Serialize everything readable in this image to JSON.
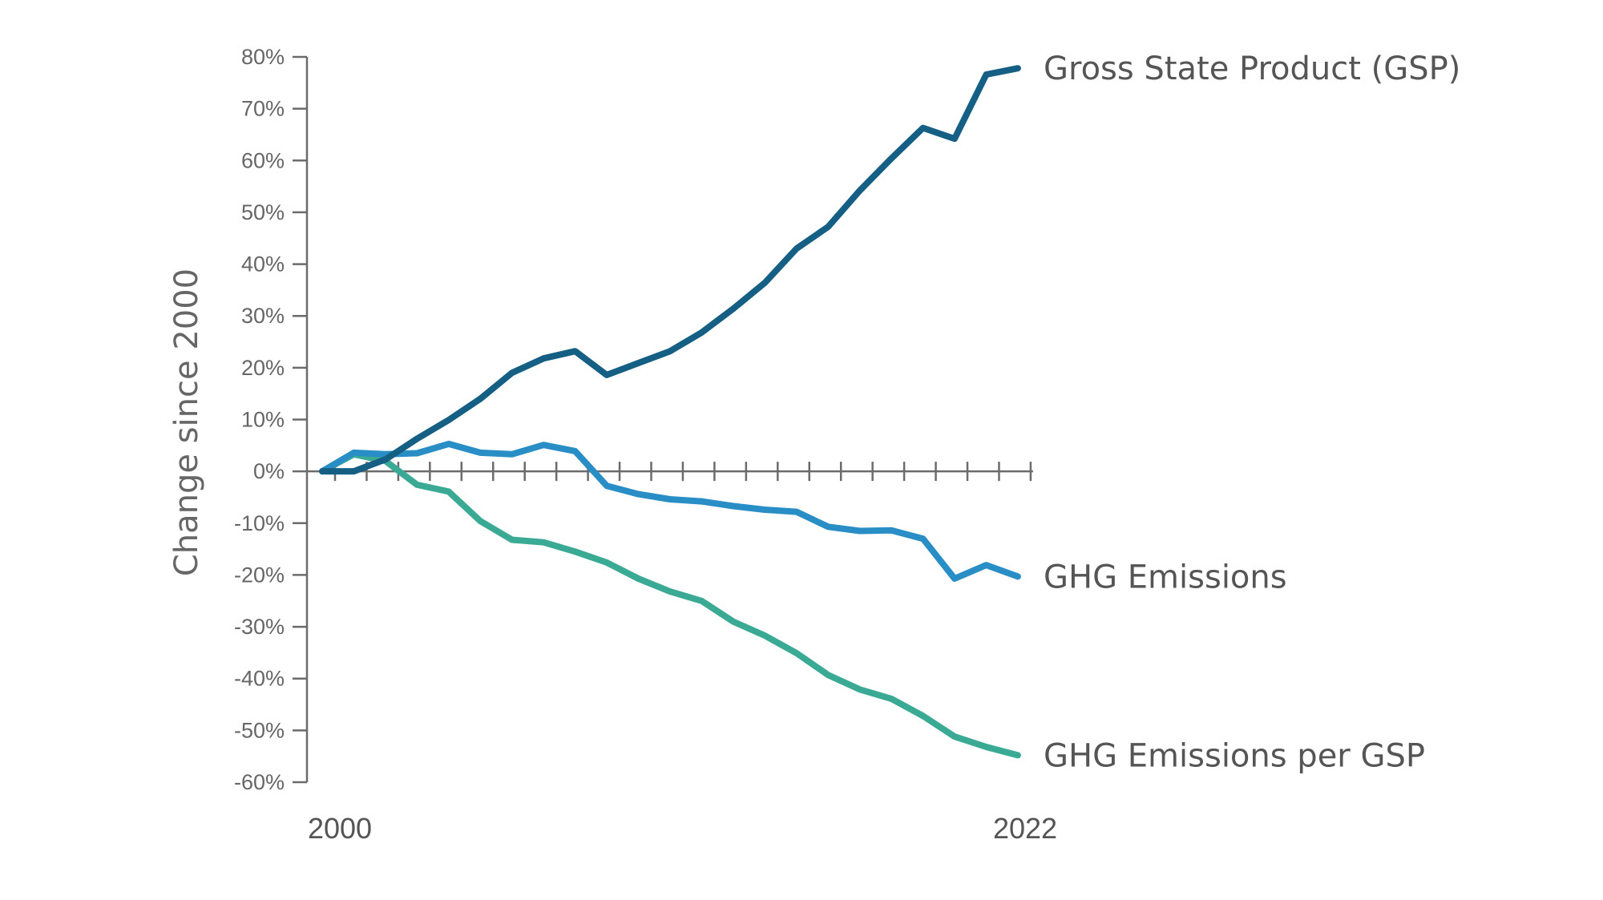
{
  "chart_data": {
    "type": "line",
    "title": "",
    "xlabel": "",
    "ylabel": "Change since 2000",
    "x": [
      2000,
      2001,
      2002,
      2003,
      2004,
      2005,
      2006,
      2007,
      2008,
      2009,
      2010,
      2011,
      2012,
      2013,
      2014,
      2015,
      2016,
      2017,
      2018,
      2019,
      2020,
      2021,
      2022
    ],
    "x_tick_labels": [
      "2000",
      "2022"
    ],
    "ylim": [
      -60,
      80
    ],
    "y_ticks": [
      80,
      70,
      60,
      50,
      40,
      30,
      20,
      10,
      0,
      -10,
      -20,
      -30,
      -40,
      -50,
      -60
    ],
    "y_tick_labels": [
      "80%",
      "70%",
      "60%",
      "50%",
      "40%",
      "30%",
      "20%",
      "10%",
      "0%",
      "-10%",
      "-20%",
      "-30%",
      "-40%",
      "-50%",
      "-60%"
    ],
    "grid": false,
    "legend": "direct labels at line ends (right)",
    "series": [
      {
        "name": "Gross State Product (GSP)",
        "color": "#155e84",
        "values": [
          0,
          0,
          2.3,
          6.3,
          9.9,
          14.0,
          19.0,
          21.8,
          23.2,
          18.6,
          20.9,
          23.2,
          26.8,
          31.4,
          36.4,
          43.0,
          47.2,
          54.2,
          60.4,
          66.3,
          64.2,
          76.6,
          77.8
        ]
      },
      {
        "name": "GHG Emissions",
        "color": "#2a8ec6",
        "values": [
          0,
          3.6,
          3.3,
          3.5,
          5.3,
          3.6,
          3.3,
          5.1,
          3.9,
          -2.8,
          -4.4,
          -5.4,
          -5.8,
          -6.7,
          -7.4,
          -7.8,
          -10.7,
          -11.5,
          -11.4,
          -13.0,
          -20.7,
          -18.1,
          -20.3
        ]
      },
      {
        "name": "GHG Emissions per GSP",
        "color": "#3aaa95",
        "values": [
          0,
          3.3,
          2.0,
          -2.6,
          -3.9,
          -9.6,
          -13.2,
          -13.7,
          -15.5,
          -17.6,
          -20.7,
          -23.2,
          -25.0,
          -29.0,
          -31.7,
          -35.1,
          -39.3,
          -42.1,
          -43.9,
          -47.2,
          -51.2,
          -53.2,
          -54.8
        ]
      }
    ]
  }
}
